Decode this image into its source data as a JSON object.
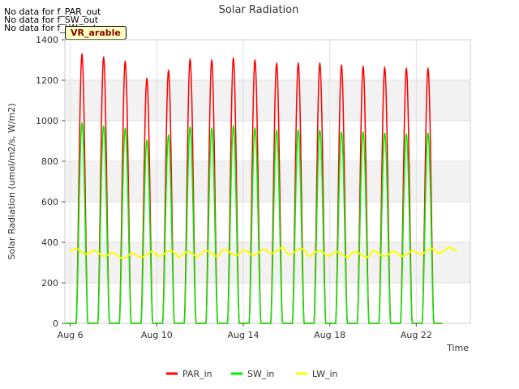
{
  "nodata_messages": [
    "No data for f_PAR_out",
    "No data for f_SW_out",
    "No data for f_LW_out"
  ],
  "site_label": "VR_arable",
  "chart_data": {
    "type": "line",
    "title": "Solar Radiation",
    "xlabel": "Time",
    "ylabel": "Solar Radiation (umol/m2/s, W/m2)",
    "xlim": [
      "2017-08-06",
      "2017-08-24"
    ],
    "ylim": [
      0,
      1400
    ],
    "x_ticks": [
      {
        "date": "2017-08-06",
        "label": "Aug 6"
      },
      {
        "date": "2017-08-10",
        "label": "Aug 10"
      },
      {
        "date": "2017-08-14",
        "label": "Aug 14"
      },
      {
        "date": "2017-08-18",
        "label": "Aug 18"
      },
      {
        "date": "2017-08-22",
        "label": "Aug 22"
      }
    ],
    "y_ticks": [
      0,
      200,
      400,
      600,
      800,
      1000,
      1200,
      1400
    ],
    "grid": true,
    "banded_background": true,
    "legend_position": "bottom",
    "series": [
      {
        "name": "PAR_in",
        "color": "#ff0000",
        "daily_peaks": [
          {
            "date": "2017-08-06",
            "value": 1330
          },
          {
            "date": "2017-08-07",
            "value": 1315
          },
          {
            "date": "2017-08-08",
            "value": 1295
          },
          {
            "date": "2017-08-09",
            "value": 1210
          },
          {
            "date": "2017-08-10",
            "value": 1250
          },
          {
            "date": "2017-08-11",
            "value": 1305
          },
          {
            "date": "2017-08-12",
            "value": 1300
          },
          {
            "date": "2017-08-13",
            "value": 1310
          },
          {
            "date": "2017-08-14",
            "value": 1300
          },
          {
            "date": "2017-08-15",
            "value": 1285
          },
          {
            "date": "2017-08-16",
            "value": 1285
          },
          {
            "date": "2017-08-17",
            "value": 1285
          },
          {
            "date": "2017-08-18",
            "value": 1275
          },
          {
            "date": "2017-08-19",
            "value": 1270
          },
          {
            "date": "2017-08-20",
            "value": 1265
          },
          {
            "date": "2017-08-21",
            "value": 1260
          },
          {
            "date": "2017-08-22",
            "value": 1260
          }
        ]
      },
      {
        "name": "SW_in",
        "color": "#00ee00",
        "daily_peaks": [
          {
            "date": "2017-08-06",
            "value": 990
          },
          {
            "date": "2017-08-07",
            "value": 975
          },
          {
            "date": "2017-08-08",
            "value": 965
          },
          {
            "date": "2017-08-09",
            "value": 905
          },
          {
            "date": "2017-08-10",
            "value": 930
          },
          {
            "date": "2017-08-11",
            "value": 970
          },
          {
            "date": "2017-08-12",
            "value": 965
          },
          {
            "date": "2017-08-13",
            "value": 975
          },
          {
            "date": "2017-08-14",
            "value": 965
          },
          {
            "date": "2017-08-15",
            "value": 955
          },
          {
            "date": "2017-08-16",
            "value": 955
          },
          {
            "date": "2017-08-17",
            "value": 955
          },
          {
            "date": "2017-08-18",
            "value": 945
          },
          {
            "date": "2017-08-19",
            "value": 945
          },
          {
            "date": "2017-08-20",
            "value": 940
          },
          {
            "date": "2017-08-21",
            "value": 935
          },
          {
            "date": "2017-08-22",
            "value": 940
          }
        ]
      },
      {
        "name": "LW_in",
        "color": "#ffff00",
        "values": [
          {
            "date": "2017-08-06",
            "value": 355
          },
          {
            "date": "2017-08-07",
            "value": 345
          },
          {
            "date": "2017-08-08",
            "value": 335
          },
          {
            "date": "2017-08-09",
            "value": 340
          },
          {
            "date": "2017-08-10",
            "value": 345
          },
          {
            "date": "2017-08-11",
            "value": 340
          },
          {
            "date": "2017-08-12",
            "value": 345
          },
          {
            "date": "2017-08-13",
            "value": 350
          },
          {
            "date": "2017-08-14",
            "value": 350
          },
          {
            "date": "2017-08-15",
            "value": 360
          },
          {
            "date": "2017-08-16",
            "value": 355
          },
          {
            "date": "2017-08-17",
            "value": 345
          },
          {
            "date": "2017-08-18",
            "value": 340
          },
          {
            "date": "2017-08-19",
            "value": 340
          },
          {
            "date": "2017-08-20",
            "value": 345
          },
          {
            "date": "2017-08-21",
            "value": 345
          },
          {
            "date": "2017-08-22",
            "value": 355
          },
          {
            "date": "2017-08-23",
            "value": 360
          }
        ]
      }
    ]
  }
}
